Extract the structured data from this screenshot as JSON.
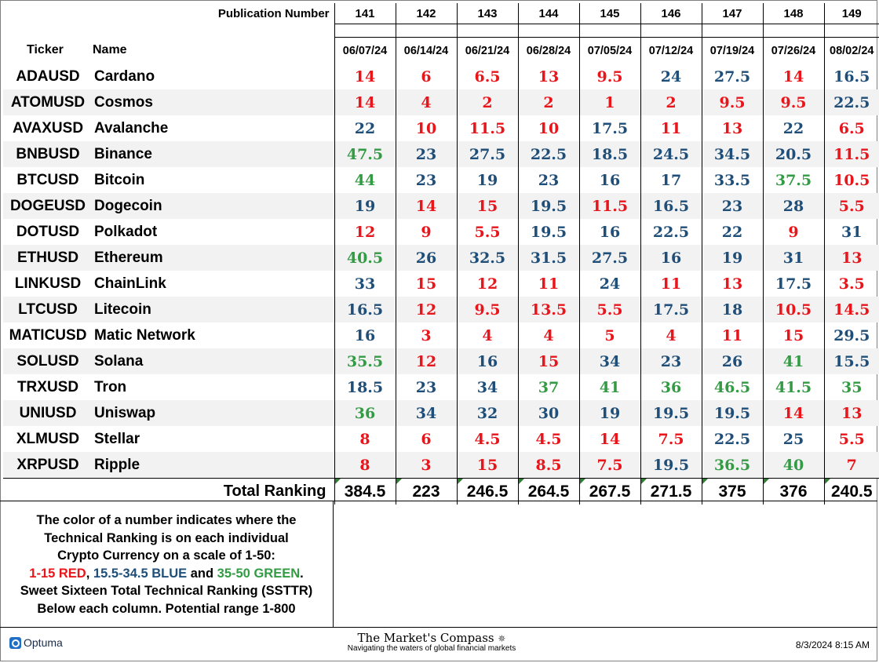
{
  "header": {
    "publication_label": "Publication Number",
    "publications": [
      "141",
      "142",
      "143",
      "144",
      "145",
      "146",
      "147",
      "148",
      "149"
    ],
    "ticker_label": "Ticker",
    "name_label": "Name",
    "dates": [
      "06/07/24",
      "06/14/24",
      "06/21/24",
      "06/28/24",
      "07/05/24",
      "07/12/24",
      "07/19/24",
      "07/26/24",
      "08/02/24"
    ]
  },
  "colors": {
    "red": "#e8151b",
    "blue": "#1f4e79",
    "green": "#339b43"
  },
  "rows": [
    {
      "ticker": "ADAUSD",
      "name": "Cardano",
      "values": [
        "14",
        "6",
        "6.5",
        "13",
        "9.5",
        "24",
        "27.5",
        "14",
        "16.5"
      ]
    },
    {
      "ticker": "ATOMUSD",
      "name": "Cosmos",
      "values": [
        "14",
        "4",
        "2",
        "2",
        "1",
        "2",
        "9.5",
        "9.5",
        "22.5"
      ]
    },
    {
      "ticker": "AVAXUSD",
      "name": "Avalanche",
      "values": [
        "22",
        "10",
        "11.5",
        "10",
        "17.5",
        "11",
        "13",
        "22",
        "6.5"
      ]
    },
    {
      "ticker": "BNBUSD",
      "name": "Binance",
      "values": [
        "47.5",
        "23",
        "27.5",
        "22.5",
        "18.5",
        "24.5",
        "34.5",
        "20.5",
        "11.5"
      ]
    },
    {
      "ticker": "BTCUSD",
      "name": "Bitcoin",
      "values": [
        "44",
        "23",
        "19",
        "23",
        "16",
        "17",
        "33.5",
        "37.5",
        "10.5"
      ]
    },
    {
      "ticker": "DOGEUSD",
      "name": "Dogecoin",
      "values": [
        "19",
        "14",
        "15",
        "19.5",
        "11.5",
        "16.5",
        "23",
        "28",
        "5.5"
      ]
    },
    {
      "ticker": "DOTUSD",
      "name": "Polkadot",
      "values": [
        "12",
        "9",
        "5.5",
        "19.5",
        "16",
        "22.5",
        "22",
        "9",
        "31"
      ]
    },
    {
      "ticker": "ETHUSD",
      "name": "Ethereum",
      "values": [
        "40.5",
        "26",
        "32.5",
        "31.5",
        "27.5",
        "16",
        "19",
        "31",
        "13"
      ]
    },
    {
      "ticker": "LINKUSD",
      "name": "ChainLink",
      "values": [
        "33",
        "15",
        "12",
        "11",
        "24",
        "11",
        "13",
        "17.5",
        "3.5"
      ]
    },
    {
      "ticker": "LTCUSD",
      "name": "Litecoin",
      "values": [
        "16.5",
        "12",
        "9.5",
        "13.5",
        "5.5",
        "17.5",
        "18",
        "10.5",
        "14.5"
      ]
    },
    {
      "ticker": "MATICUSD",
      "name": "Matic Network",
      "values": [
        "16",
        "3",
        "4",
        "4",
        "5",
        "4",
        "11",
        "15",
        "29.5"
      ]
    },
    {
      "ticker": "SOLUSD",
      "name": "Solana",
      "values": [
        "35.5",
        "12",
        "16",
        "15",
        "34",
        "23",
        "26",
        "41",
        "15.5"
      ]
    },
    {
      "ticker": "TRXUSD",
      "name": "Tron",
      "values": [
        "18.5",
        "23",
        "34",
        "37",
        "41",
        "36",
        "46.5",
        "41.5",
        "35"
      ]
    },
    {
      "ticker": "UNIUSD",
      "name": "Uniswap",
      "values": [
        "36",
        "34",
        "32",
        "30",
        "19",
        "19.5",
        "19.5",
        "14",
        "13"
      ]
    },
    {
      "ticker": "XLMUSD",
      "name": "Stellar",
      "values": [
        "8",
        "6",
        "4.5",
        "4.5",
        "14",
        "7.5",
        "22.5",
        "25",
        "5.5"
      ]
    },
    {
      "ticker": "XRPUSD",
      "name": "Ripple",
      "values": [
        "8",
        "3",
        "15",
        "8.5",
        "7.5",
        "19.5",
        "36.5",
        "40",
        "7"
      ]
    }
  ],
  "total": {
    "label": "Total Ranking",
    "values": [
      "384.5",
      "223",
      "246.5",
      "264.5",
      "267.5",
      "271.5",
      "375",
      "376",
      "240.5"
    ]
  },
  "notes": {
    "line1": "The color of a number indicates where the",
    "line2": "Technical Ranking is on each individual",
    "line3": "Crypto Currency on a scale of 1-50:",
    "red_range": "1-15 RED",
    "sep1": ", ",
    "blue_range": "15.5-34.5 BLUE",
    "sep2": " and ",
    "green_range": "35-50 GREEN",
    "end": ".",
    "line5": "Sweet Sixteen Total Technical Ranking (SSTTR)",
    "line6": "Below each column.   Potential range 1-800"
  },
  "footer": {
    "optuma_label": "Optuma",
    "compass_title": "The Market's Compass",
    "compass_subtitle": "Navigating the waters of global financial markets",
    "timestamp": "8/3/2024 8:15 AM"
  }
}
